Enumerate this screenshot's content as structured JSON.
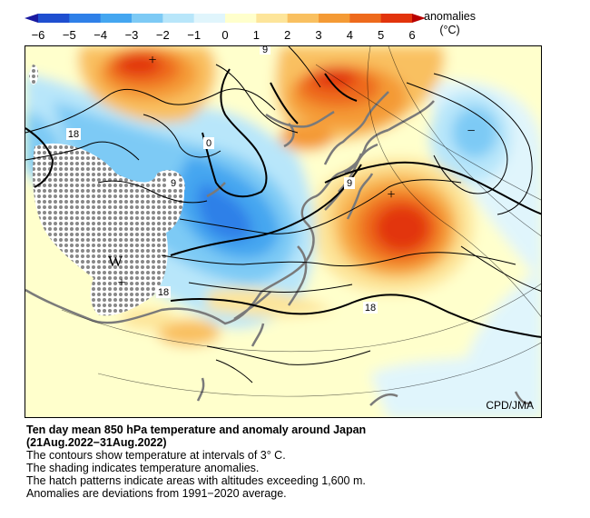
{
  "colorbar": {
    "ticks": [
      "−6",
      "−5",
      "−4",
      "−3",
      "−2",
      "−1",
      "0",
      "1",
      "2",
      "3",
      "4",
      "5",
      "6"
    ],
    "colors": [
      "#1a1aa0",
      "#1f4fd0",
      "#2f80e8",
      "#44a6f0",
      "#7dcaf5",
      "#b8e6fa",
      "#e0f5fc",
      "#ffffcc",
      "#fde59a",
      "#f9c060",
      "#f49a35",
      "#ee6a1c",
      "#e2340c",
      "#b80000"
    ],
    "units_line1": "anomalies",
    "units_line2": "(°C)"
  },
  "map": {
    "contour_labels": {
      "zero": "0",
      "nine_top": "9",
      "nine_mid": "9",
      "nine_east": "9",
      "eighteen_west": "18",
      "eighteen_south": "18",
      "eighteen_east": "18"
    },
    "high_marker": "+",
    "low_marker": "−",
    "w_marker": "W",
    "credit": "CPD/JMA"
  },
  "caption": {
    "title": "Ten day mean 850 hPa temperature and anomaly around Japan",
    "period": "(21Aug.2022−31Aug.2022)",
    "line1": "The contours show temperature at intervals of 3° C.",
    "line2": "The shading indicates temperature anomalies.",
    "line3": "The hatch patterns indicate areas with altitudes exceeding 1,600 m.",
    "line4": "Anomalies are deviations from 1991−2020 average."
  }
}
